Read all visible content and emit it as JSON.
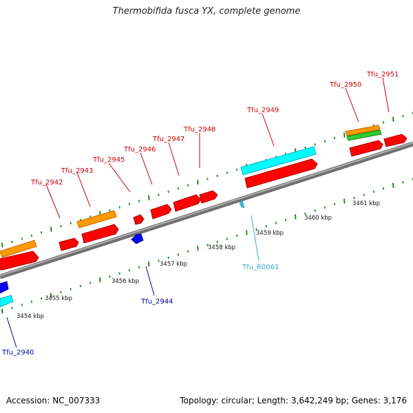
{
  "title": "Thermobifida fusca YX, complete genome",
  "footer": {
    "accession": "Accession: NC_007333",
    "stats": "Topology: circular; Length: 3,642,249 bp; Genes: 3,176"
  },
  "colors": {
    "backbone": "#909090",
    "forward_gene": "#ff0000",
    "reverse_gene": "#0000ff",
    "rna": "#00ffff",
    "cds_orange": "#ff9900",
    "cds_green": "#33cc33",
    "tick": "#228822",
    "label_forward": "#cc0000",
    "label_reverse": "#000099",
    "label_rna": "#33aacc"
  },
  "kbp_labels": [
    "3454 kbp",
    "3455 kbp",
    "3456 kbp",
    "3457 kbp",
    "3458 kbp",
    "3459 kbp",
    "3460 kbp",
    "3461 kbp"
  ],
  "genes": [
    {
      "name": "Tfu_2940",
      "strand": "reverse",
      "color": "label_reverse"
    },
    {
      "name": "Tfu_2942",
      "strand": "forward",
      "color": "label_forward"
    },
    {
      "name": "Tfu_2943",
      "strand": "forward",
      "color": "label_forward"
    },
    {
      "name": "Tfu_2944",
      "strand": "reverse",
      "color": "label_reverse"
    },
    {
      "name": "Tfu_2945",
      "strand": "forward",
      "color": "label_forward"
    },
    {
      "name": "Tfu_2946",
      "strand": "forward",
      "color": "label_forward"
    },
    {
      "name": "Tfu_2947",
      "strand": "forward",
      "color": "label_forward"
    },
    {
      "name": "Tfu_2948",
      "strand": "forward",
      "color": "label_forward"
    },
    {
      "name": "Tfu_2949",
      "strand": "forward",
      "color": "label_forward"
    },
    {
      "name": "Tfu_2950",
      "strand": "forward",
      "color": "label_forward"
    },
    {
      "name": "Tfu_2951",
      "strand": "forward",
      "color": "label_forward"
    },
    {
      "name": "Tfu_R0061",
      "strand": "reverse",
      "color": "label_rna"
    }
  ]
}
